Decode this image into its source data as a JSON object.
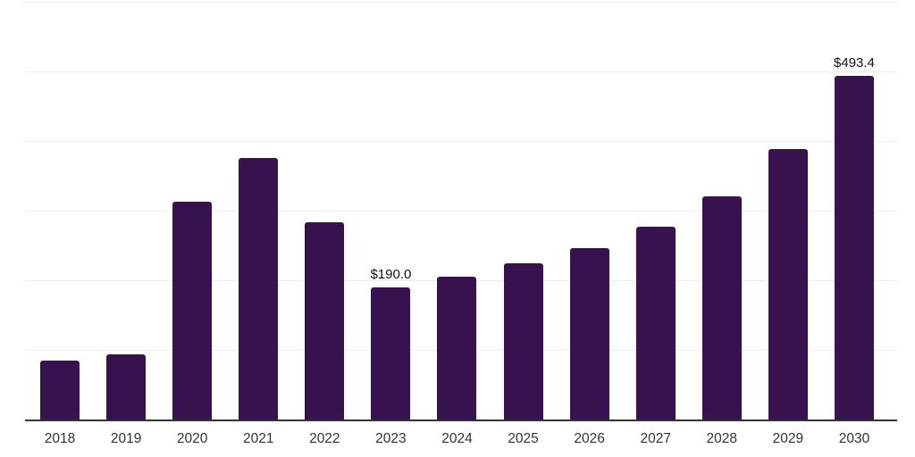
{
  "chart_data": {
    "type": "bar",
    "categories": [
      "2018",
      "2019",
      "2020",
      "2021",
      "2022",
      "2023",
      "2024",
      "2025",
      "2026",
      "2027",
      "2028",
      "2029",
      "2030"
    ],
    "values": [
      85,
      94,
      313,
      376,
      283,
      190,
      205,
      225,
      246,
      277,
      320,
      389,
      493.4
    ],
    "data_labels": {
      "2023": "$190.0",
      "2030": "$493.4"
    },
    "title": "",
    "xlabel": "",
    "ylabel": "",
    "ylim": [
      0,
      600
    ],
    "gridline_step": 100,
    "grid": true,
    "legend": "none",
    "bar_color": "#38124e",
    "gridline_color": "#ededed",
    "axis_line_color": "#333333",
    "tick_label_color": "#333333",
    "value_label_color": "#111111"
  }
}
